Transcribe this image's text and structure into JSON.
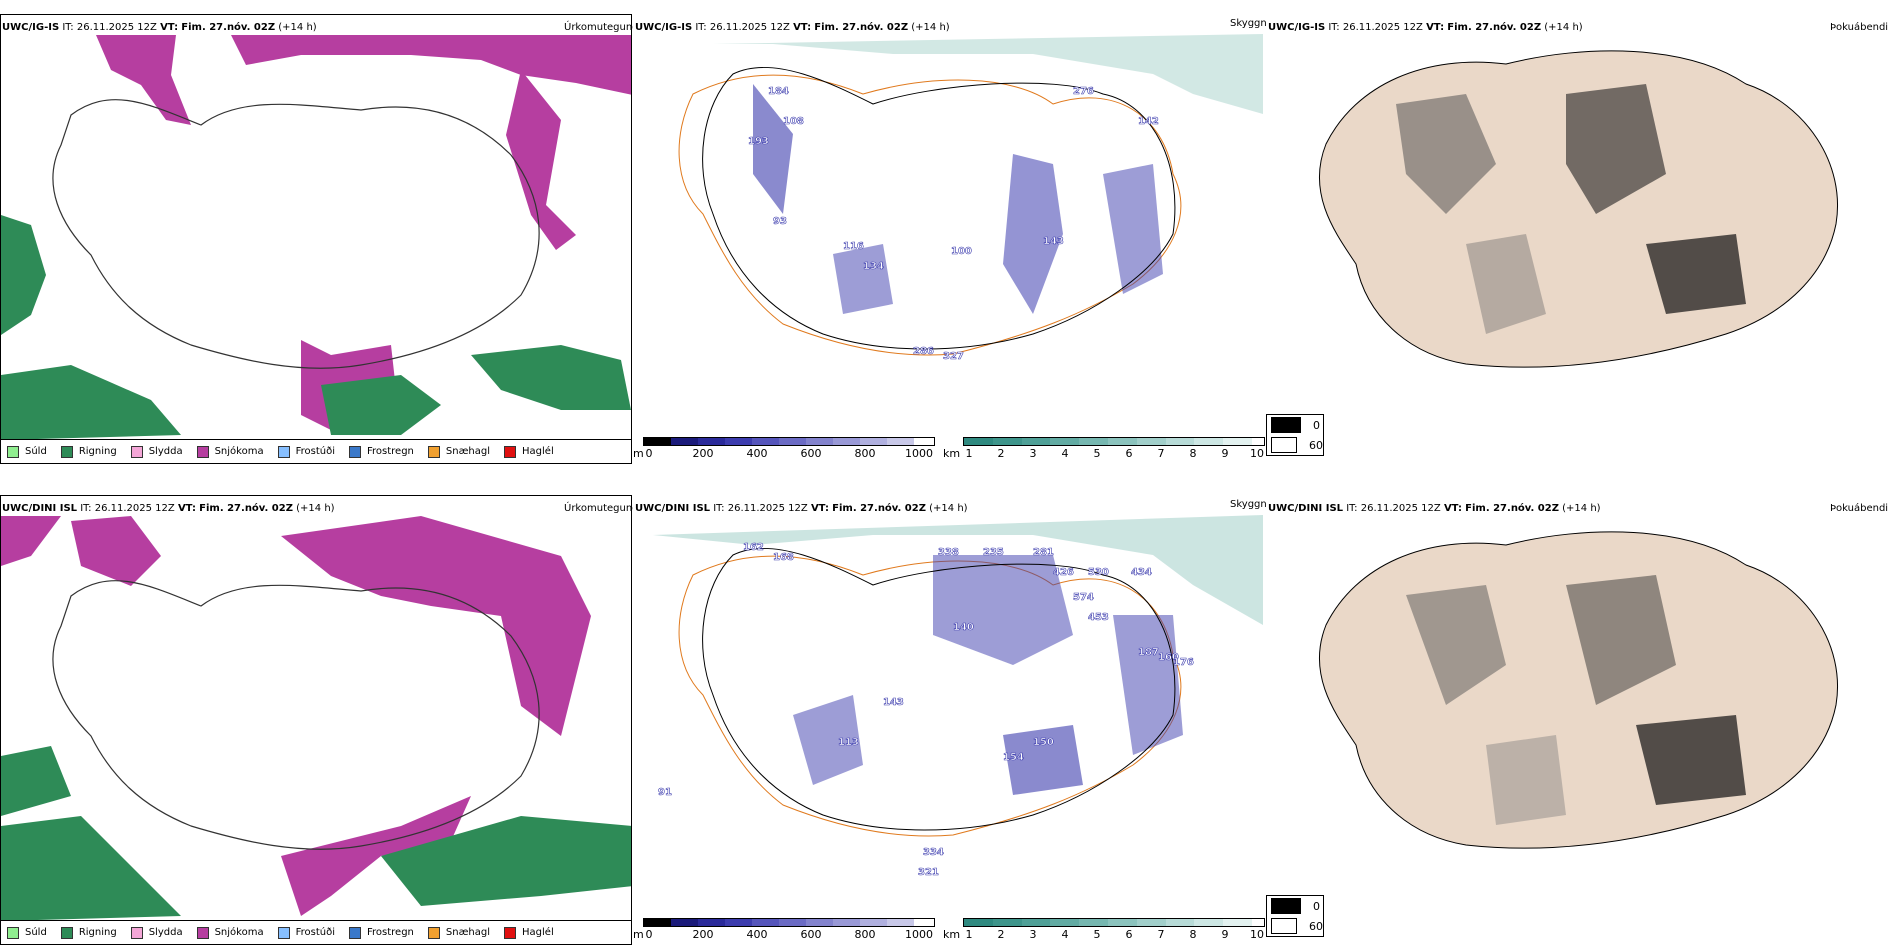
{
  "rows": [
    {
      "model": "UWC/IG-IS",
      "it_label": "IT:",
      "it_value": "26.11.2025 12Z",
      "vt_label": "VT:",
      "vt_value": "Fim. 27.nóv. 02Z",
      "lead": "(+14 h)"
    },
    {
      "model": "UWC/DINI ISL",
      "it_label": "IT:",
      "it_value": "26.11.2025 12Z",
      "vt_label": "VT:",
      "vt_value": "Fim. 27.nóv. 02Z",
      "lead": "(+14 h)"
    }
  ],
  "panels": {
    "precip_title": "Úrkomutegund",
    "visibility_title": "Skyggni",
    "fog_title": "Þokuábendi"
  },
  "precip_legend": [
    {
      "label": "Súld",
      "color": "#90ee90"
    },
    {
      "label": "Rigning",
      "color": "#2e8b57"
    },
    {
      "label": "Slydda",
      "color": "#f4a6d7"
    },
    {
      "label": "Snjókoma",
      "color": "#b63ea0"
    },
    {
      "label": "Frostúði",
      "color": "#87bfff"
    },
    {
      "label": "Frostregn",
      "color": "#3a78c9"
    },
    {
      "label": "Snæhagl",
      "color": "#f0a030"
    },
    {
      "label": "Haglél",
      "color": "#e01010"
    }
  ],
  "visibility_legend": {
    "m_unit": "m",
    "m_ticks": [
      "0",
      "200",
      "400",
      "600",
      "800",
      "1000"
    ],
    "m_colors": [
      "#000000",
      "#1a1a7a",
      "#2a2a9a",
      "#3c3cae",
      "#5555bb",
      "#6b6bc4",
      "#8383cd",
      "#9999d6",
      "#b0b0df",
      "#c8c8e8"
    ],
    "km_unit": "km",
    "km_ticks": [
      "1",
      "2",
      "3",
      "4",
      "5",
      "6",
      "7",
      "8",
      "9",
      "10"
    ],
    "km_colors": [
      "#2f8a80",
      "#3e958b",
      "#4fa097",
      "#62aba3",
      "#76b7b0",
      "#8bc3bd",
      "#a1cfca",
      "#b7dbd7",
      "#cde7e4",
      "#e3f2f0"
    ]
  },
  "fog_legend": {
    "items": [
      {
        "label": "0",
        "color": "#000000"
      },
      {
        "label": "60",
        "color": "#ffffff"
      }
    ]
  },
  "vis_labels_top": [
    "184",
    "108",
    "276",
    "142",
    "193",
    "93",
    "116",
    "134",
    "100",
    "327",
    "286",
    "143"
  ],
  "vis_labels_bottom": [
    "162",
    "168",
    "338",
    "235",
    "281",
    "426",
    "530",
    "434",
    "574",
    "453",
    "187",
    "160",
    "176",
    "140",
    "113",
    "143",
    "150",
    "154",
    "334",
    "321",
    "91"
  ]
}
